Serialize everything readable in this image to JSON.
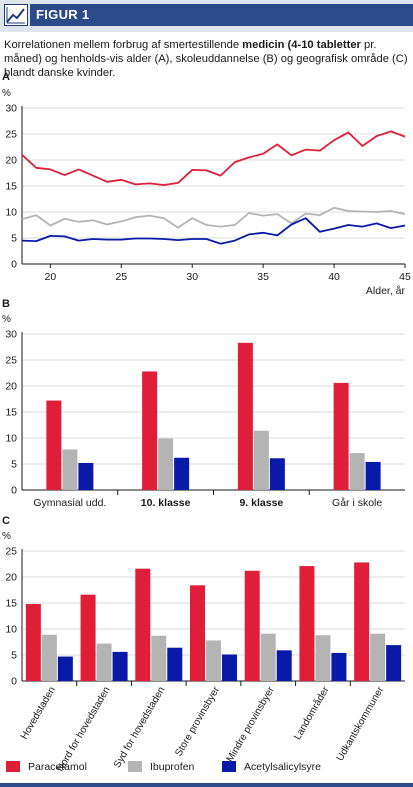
{
  "header": {
    "title": "FIGUR 1"
  },
  "caption": {
    "p1": "Korrelationen mellem forbrug af smertestillende ",
    "p1_bold": "medicin (4-10 tabletter",
    "p2": " pr. måned) og henholds-vis alder (A), skoleuddannelse (B) og geografisk område (C) blandt danske kvinder."
  },
  "colors": {
    "paracetamol": "#e01e37",
    "ibuprofen": "#b4b4b4",
    "acetylsalicylsyre": "#0a1aa8",
    "header": "#2a4a8a"
  },
  "legend": [
    "Paracetamol",
    "Ibuprofen",
    "Acetylsalicylsyre"
  ],
  "chart_data": [
    {
      "panel": "A",
      "type": "line",
      "ylabel": "%",
      "xlabel": "Alder, år",
      "ylim": [
        0,
        30
      ],
      "xlim": [
        18,
        45
      ],
      "yticks": [
        0,
        5,
        10,
        15,
        20,
        25,
        30
      ],
      "xticks": [
        20,
        25,
        30,
        35,
        40,
        45
      ],
      "x": [
        18,
        19,
        20,
        21,
        22,
        23,
        24,
        25,
        26,
        27,
        28,
        29,
        30,
        31,
        32,
        33,
        34,
        35,
        36,
        37,
        38,
        39,
        40,
        41,
        42,
        43,
        44,
        45
      ],
      "series": [
        {
          "name": "Paracetamol",
          "values": [
            21.0,
            18.5,
            18.2,
            17.1,
            18.2,
            17.0,
            15.8,
            16.2,
            15.3,
            15.5,
            15.2,
            15.6,
            18.1,
            18.0,
            17.0,
            19.6,
            20.5,
            21.2,
            23.0,
            20.9,
            22.0,
            21.8,
            23.8,
            25.3,
            22.7,
            24.6,
            25.5,
            24.5
          ]
        },
        {
          "name": "Ibuprofen",
          "values": [
            8.6,
            9.4,
            7.4,
            8.7,
            8.1,
            8.4,
            7.6,
            8.2,
            9.0,
            9.3,
            8.8,
            7.0,
            8.8,
            7.5,
            7.2,
            7.5,
            9.8,
            9.3,
            9.6,
            7.8,
            9.7,
            9.4,
            10.8,
            10.2,
            10.1,
            10.0,
            10.2,
            9.6
          ]
        },
        {
          "name": "Acetylsalicylsyre",
          "values": [
            4.5,
            4.4,
            5.4,
            5.3,
            4.5,
            4.8,
            4.7,
            4.7,
            4.9,
            4.9,
            4.8,
            4.6,
            4.8,
            4.8,
            3.9,
            4.5,
            5.7,
            6.0,
            5.5,
            7.6,
            8.8,
            6.2,
            6.8,
            7.5,
            7.2,
            7.8,
            6.9,
            7.4
          ]
        }
      ]
    },
    {
      "panel": "B",
      "type": "bar",
      "ylabel": "%",
      "ylim": [
        0,
        30
      ],
      "yticks": [
        0,
        5,
        10,
        15,
        20,
        25,
        30
      ],
      "categories": [
        "Gymnasial udd.",
        "10. klasse",
        "9. klasse",
        "Går i skole"
      ],
      "series": [
        {
          "name": "Paracetamol",
          "values": [
            17.2,
            22.8,
            28.3,
            20.6
          ]
        },
        {
          "name": "Ibuprofen",
          "values": [
            7.8,
            9.9,
            11.4,
            7.1
          ]
        },
        {
          "name": "Acetylsalicylsyre",
          "values": [
            5.2,
            6.2,
            6.1,
            5.4
          ]
        }
      ]
    },
    {
      "panel": "C",
      "type": "bar",
      "ylabel": "%",
      "ylim": [
        0,
        25
      ],
      "yticks": [
        0,
        5,
        10,
        15,
        20,
        25
      ],
      "categories": [
        "Hovedstaden",
        "Nord for hovedstaden",
        "Syd for hovedstaden",
        "Store provinsbyer",
        "Mindre provinsbyer",
        "Landområder",
        "Udkantskommuner"
      ],
      "series": [
        {
          "name": "Paracetamol",
          "values": [
            14.8,
            16.6,
            21.6,
            18.4,
            21.2,
            22.1,
            22.8
          ]
        },
        {
          "name": "Ibuprofen",
          "values": [
            8.9,
            7.2,
            8.7,
            7.8,
            9.1,
            8.8,
            9.1
          ]
        },
        {
          "name": "Acetylsalicylsyre",
          "values": [
            4.7,
            5.6,
            6.4,
            5.1,
            5.9,
            5.4,
            6.9
          ]
        }
      ]
    }
  ]
}
